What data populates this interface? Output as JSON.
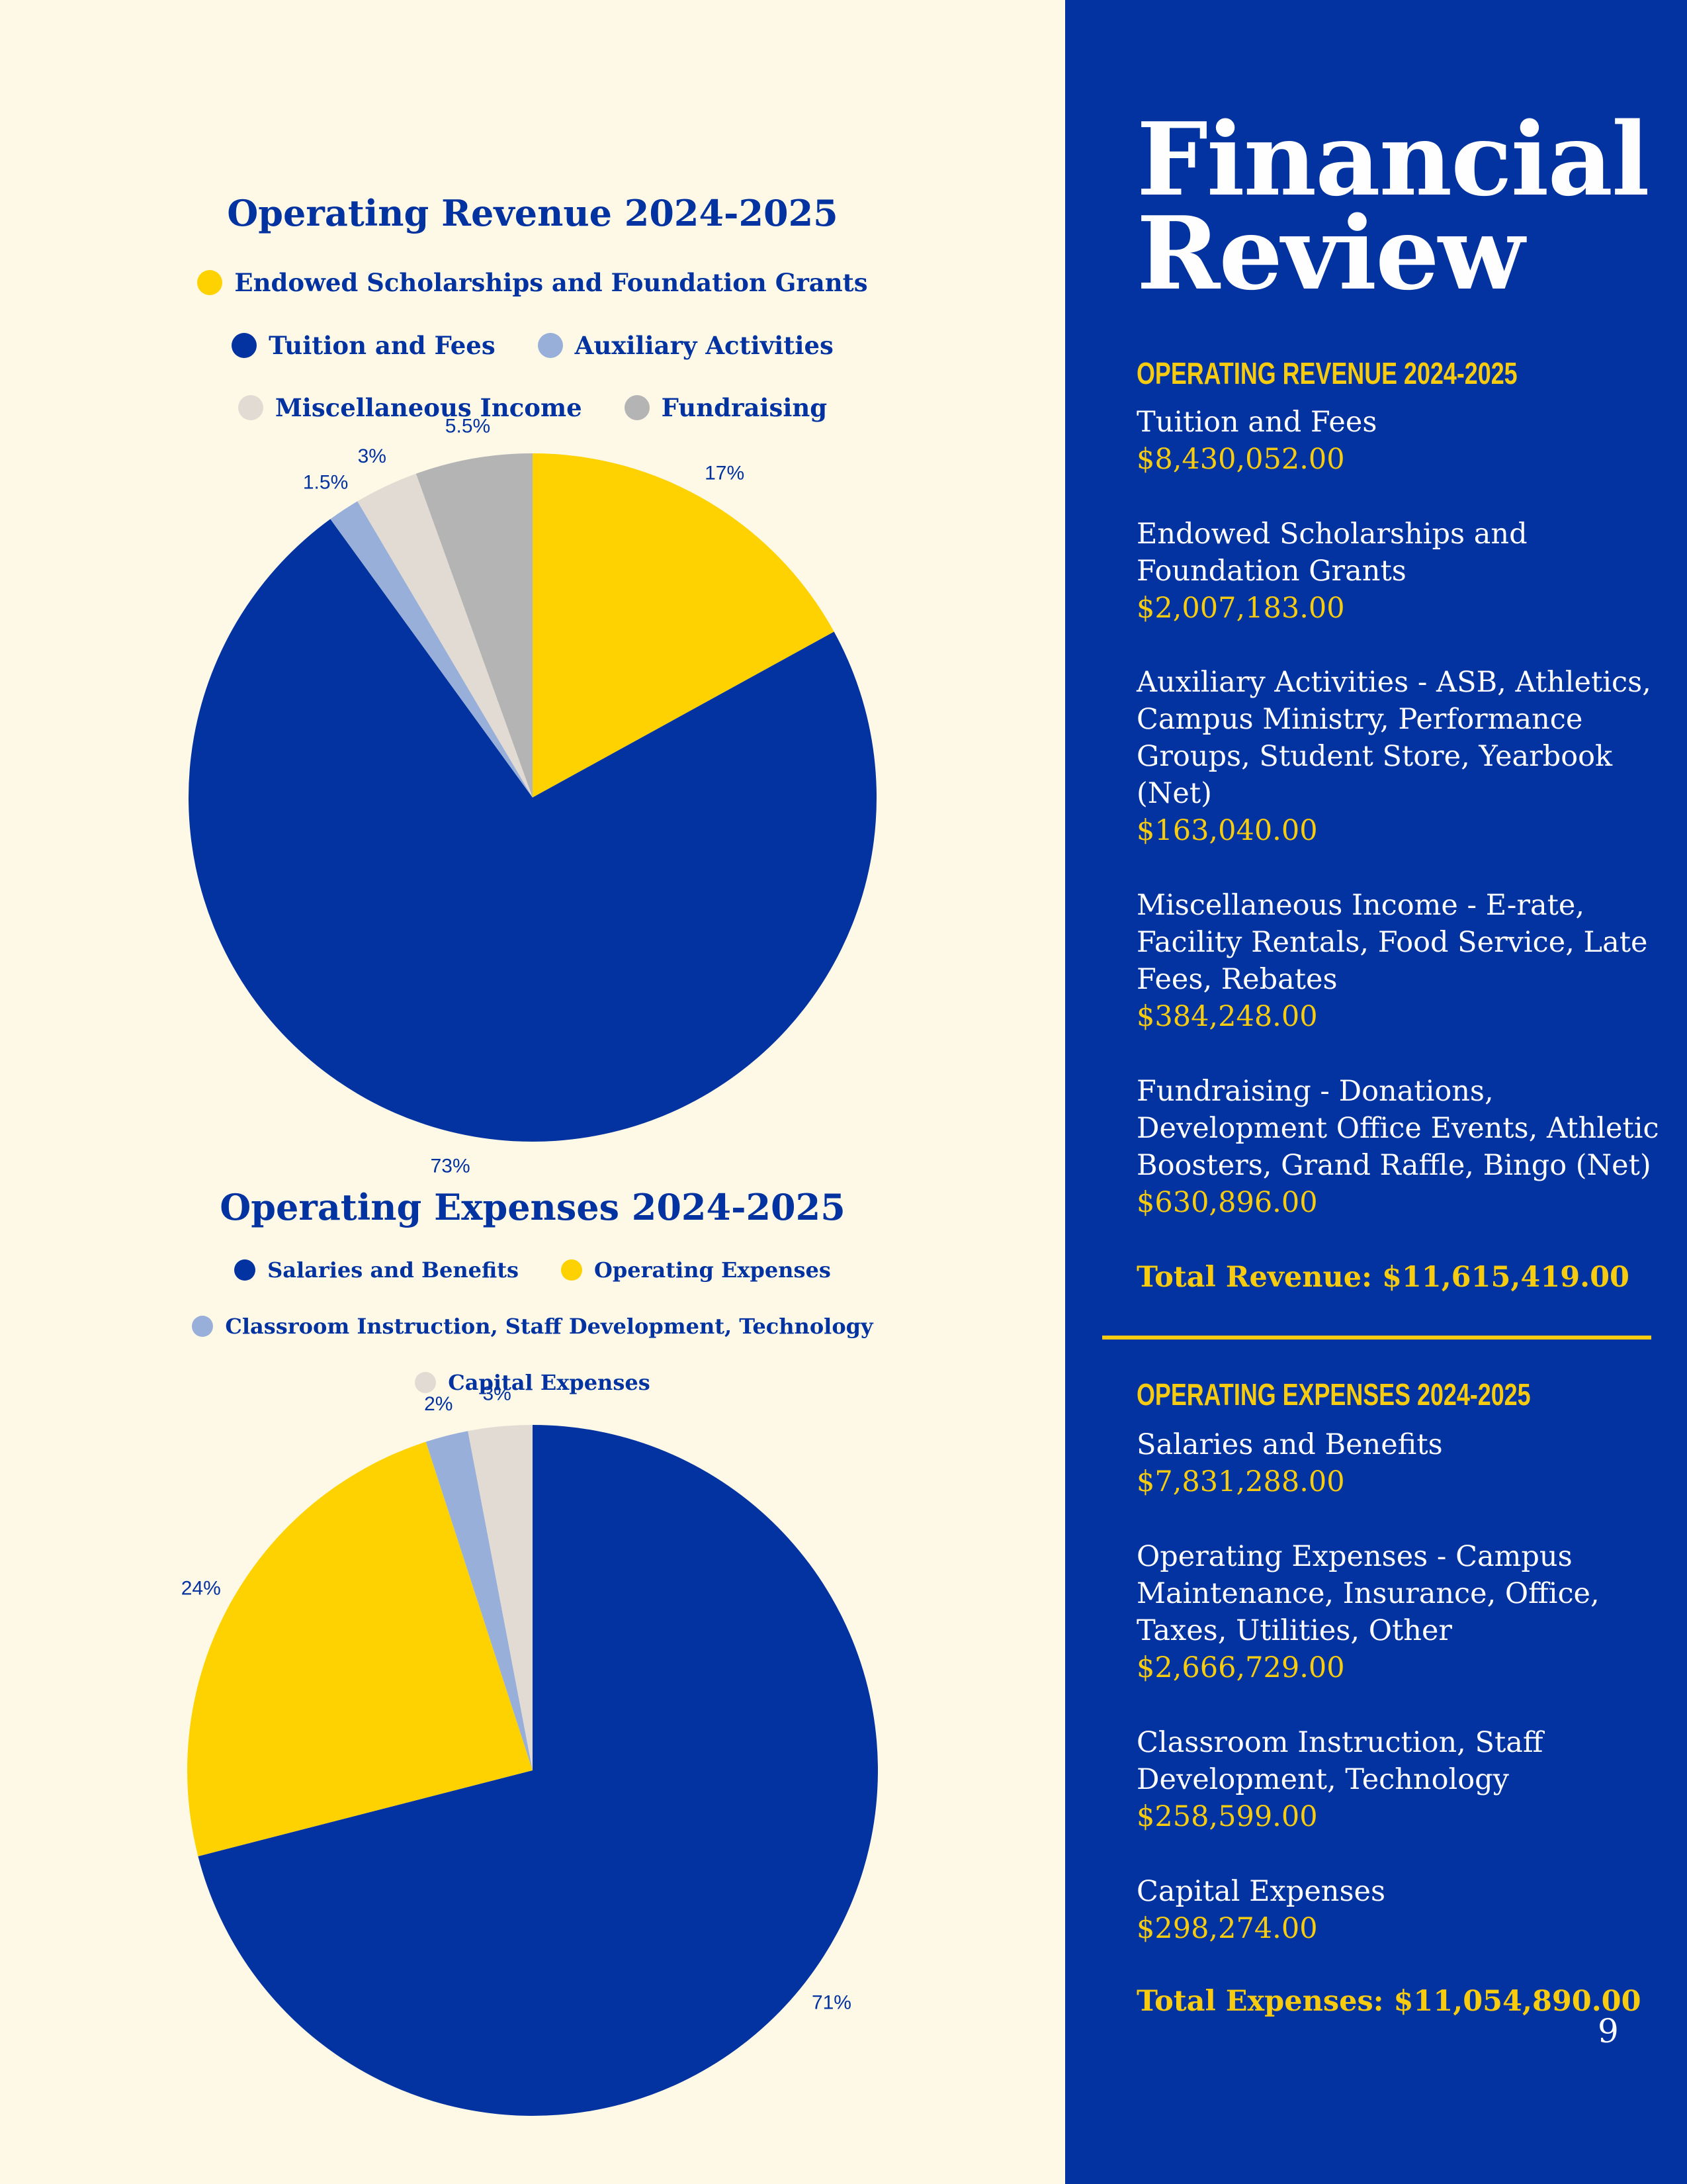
{
  "colors": {
    "blue": "#0233a0",
    "yellow": "#fed200",
    "light_blue": "#98afda",
    "beige": "#e2dbd3",
    "gray": "#b4b4b4",
    "cream": "#fef8e6",
    "accent_yellow": "#f7cc10"
  },
  "chart_data": [
    {
      "type": "pie",
      "title": "Operating Revenue 2024-2025",
      "legend": [
        [
          "Endowed Scholarships and Foundation Grants"
        ],
        [
          "Tuition and Fees",
          "Auxiliary Activities"
        ],
        [
          "Miscellaneous Income",
          "Fundraising"
        ]
      ],
      "start_angle": 0,
      "direction": "clockwise",
      "slices": [
        {
          "label": "Endowed Scholarships and Foundation Grants",
          "value": 17,
          "display": "17%",
          "color": "#fed200"
        },
        {
          "label": "Tuition and Fees",
          "value": 73,
          "display": "73%",
          "color": "#0233a0"
        },
        {
          "label": "Auxiliary Activities",
          "value": 1.5,
          "display": "1.5%",
          "color": "#98afda"
        },
        {
          "label": "Miscellaneous Income",
          "value": 3,
          "display": "3%",
          "color": "#e2dbd3"
        },
        {
          "label": "Fundraising",
          "value": 5.5,
          "display": "5.5%",
          "color": "#b4b4b4"
        }
      ]
    },
    {
      "type": "pie",
      "title": "Operating Expenses 2024-2025",
      "legend": [
        [
          "Salaries and Benefits",
          "Operating Expenses"
        ],
        [
          "Classroom Instruction, Staff Development, Technology"
        ],
        [
          "Capital Expenses"
        ]
      ],
      "start_angle": 0,
      "direction": "clockwise",
      "slices": [
        {
          "label": "Salaries and Benefits",
          "value": 71,
          "display": "71%",
          "color": "#0233a0"
        },
        {
          "label": "Operating Expenses",
          "value": 24,
          "display": "24%",
          "color": "#fed200"
        },
        {
          "label": "Classroom Instruction, Staff Development, Technology",
          "value": 2,
          "display": "2%",
          "color": "#98afda"
        },
        {
          "label": "Capital Expenses",
          "value": 3,
          "display": "3%",
          "color": "#e2dbd3"
        }
      ]
    }
  ],
  "sidebar": {
    "title_line1": "Financial",
    "title_line2": "Review",
    "revenue_heading": "OPERATING REVENUE 2024-2025",
    "revenue_items": [
      {
        "label": "Tuition and Fees",
        "amount": "$8,430,052.00"
      },
      {
        "label": "Endowed Scholarships and Foundation Grants",
        "amount": "$2,007,183.00"
      },
      {
        "label": "Auxiliary Activities - ASB, Athletics, Campus Ministry, Performance Groups, Student Store, Yearbook (Net)",
        "amount": "$163,040.00"
      },
      {
        "label": "Miscellaneous Income - E-rate, Facility Rentals, Food Service, Late Fees, Rebates",
        "amount": "$384,248.00"
      },
      {
        "label": "Fundraising - Donations, Development Office Events, Athletic Boosters, Grand Raffle, Bingo (Net)",
        "amount": "$630,896.00"
      }
    ],
    "total_revenue": "Total Revenue: $11,615,419.00",
    "expenses_heading": "OPERATING EXPENSES 2024-2025",
    "expense_items": [
      {
        "label": "Salaries and Benefits",
        "amount": "$7,831,288.00"
      },
      {
        "label": "Operating Expenses - Campus Maintenance, Insurance, Office, Taxes, Utilities, Other",
        "amount": "$2,666,729.00"
      },
      {
        "label": "Classroom Instruction, Staff Development, Technology",
        "amount": "$258,599.00"
      },
      {
        "label": "Capital Expenses",
        "amount": "$298,274.00"
      }
    ],
    "total_expenses": "Total Expenses: $11,054,890.00"
  },
  "page_number": "9"
}
